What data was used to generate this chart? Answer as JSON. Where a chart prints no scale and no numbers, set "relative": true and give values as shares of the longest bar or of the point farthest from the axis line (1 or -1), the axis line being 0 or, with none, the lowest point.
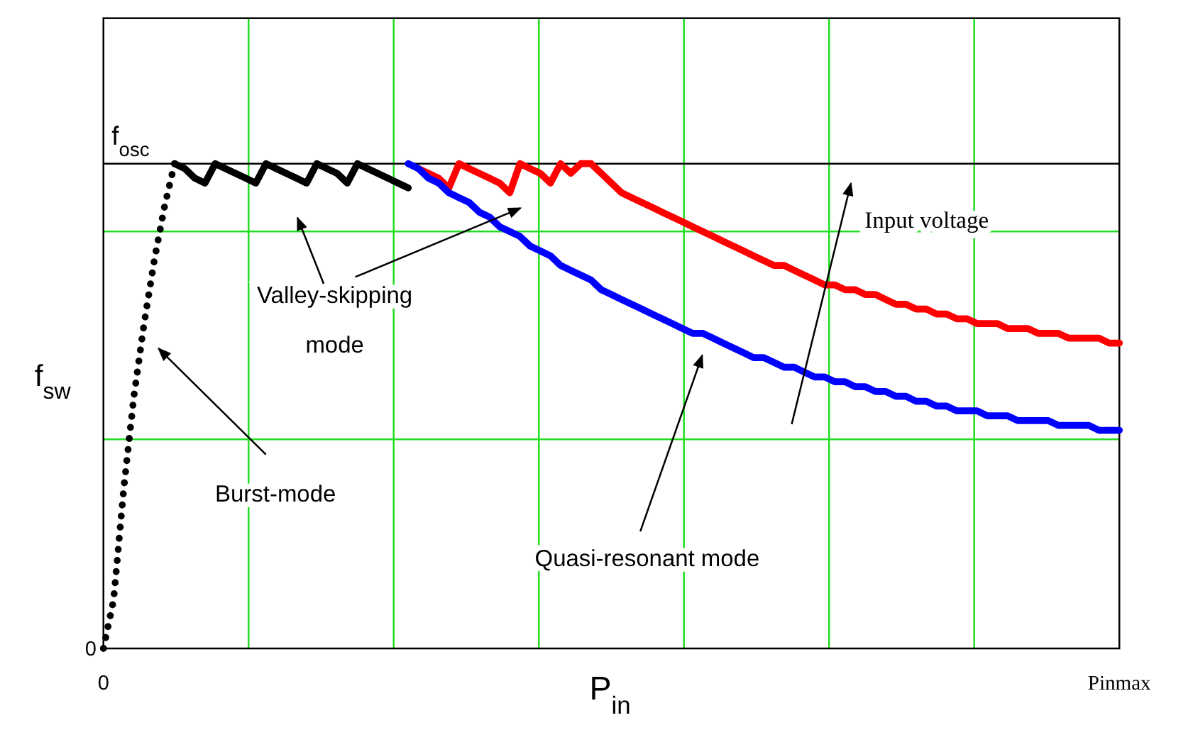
{
  "chart_data": {
    "type": "line",
    "xlabel": "P$_{in}$",
    "ylabel": "f$_{sw}$",
    "relative": true,
    "grid": true,
    "categories": [
      "0",
      null,
      null,
      null,
      null,
      null,
      null,
      null,
      null,
      null,
      null,
      null,
      null,
      null,
      null,
      null,
      null,
      null,
      null,
      null,
      null,
      null,
      null,
      null,
      null,
      null,
      null,
      null,
      null,
      null,
      null,
      null,
      null,
      null,
      null,
      null,
      null,
      null,
      null,
      null,
      null,
      null,
      null,
      null,
      null,
      null,
      null,
      null,
      null,
      null,
      null,
      null,
      null,
      null,
      null,
      null,
      null,
      null,
      null,
      null,
      null,
      null,
      null,
      null,
      null,
      null,
      null,
      null,
      null,
      null,
      null,
      null,
      null,
      null,
      null,
      null,
      null,
      null,
      null,
      null,
      null,
      null,
      null,
      null,
      null,
      null,
      null,
      null,
      null,
      null,
      null,
      null,
      null,
      null,
      null,
      null,
      null,
      null,
      null,
      null,
      "Pinmax"
    ],
    "series": [
      {
        "name": "f$_{osc}$",
        "color": "#000000",
        "line_style": "solid",
        "values": [
          1,
          1,
          1,
          1,
          1,
          1,
          1,
          1,
          1,
          1,
          1,
          1,
          1,
          1,
          1,
          1,
          1,
          1,
          1,
          1,
          1,
          1,
          1,
          1,
          1,
          1,
          1,
          1,
          1,
          1,
          1,
          1,
          1,
          1,
          1,
          1,
          1,
          1,
          1,
          1,
          1,
          1,
          1,
          1,
          1,
          1,
          1,
          1,
          1,
          1,
          1,
          1,
          1,
          1,
          1,
          1,
          1,
          1,
          1,
          1,
          1,
          1,
          1,
          1,
          1,
          1,
          1,
          1,
          1,
          1,
          1,
          1,
          1,
          1,
          1,
          1,
          1,
          1,
          1,
          1,
          1,
          1,
          1,
          1,
          1,
          1,
          1,
          1,
          1,
          1,
          1,
          1,
          1,
          1,
          1,
          1,
          1,
          1,
          1,
          1,
          1
        ]
      },
      {
        "color": "#000000",
        "line_style": "dotted",
        "values": [
          0,
          0.1,
          0.33,
          0.52,
          0.67,
          0.8,
          0.91,
          1,
          null,
          null,
          null,
          null,
          null,
          null,
          null,
          null,
          null,
          null,
          null,
          null,
          null,
          null,
          null,
          null,
          null,
          null,
          null,
          null,
          null,
          null,
          null,
          null,
          null,
          null,
          null,
          null,
          null,
          null,
          null,
          null,
          null,
          null,
          null,
          null,
          null,
          null,
          null,
          null,
          null,
          null,
          null,
          null,
          null,
          null,
          null,
          null,
          null,
          null,
          null,
          null,
          null,
          null,
          null,
          null,
          null,
          null,
          null,
          null,
          null,
          null,
          null,
          null,
          null,
          null,
          null,
          null,
          null,
          null,
          null,
          null,
          null,
          null,
          null,
          null,
          null,
          null,
          null,
          null,
          null,
          null,
          null,
          null,
          null,
          null,
          null,
          null,
          null,
          null,
          null,
          null,
          null
        ]
      },
      {
        "color": "#000000",
        "line_style": "solid",
        "values": [
          null,
          null,
          null,
          null,
          null,
          null,
          null,
          1,
          0.99,
          0.97,
          0.96,
          1,
          0.99,
          0.98,
          0.97,
          0.96,
          1,
          0.99,
          0.98,
          0.97,
          0.96,
          1,
          0.99,
          0.98,
          0.96,
          1,
          0.99,
          0.98,
          0.97,
          0.96,
          0.95,
          null,
          null,
          null,
          null,
          null,
          null,
          null,
          null,
          null,
          null,
          null,
          null,
          null,
          null,
          null,
          null,
          null,
          null,
          null,
          null,
          null,
          null,
          null,
          null,
          null,
          null,
          null,
          null,
          null,
          null,
          null,
          null,
          null,
          null,
          null,
          null,
          null,
          null,
          null,
          null,
          null,
          null,
          null,
          null,
          null,
          null,
          null,
          null,
          null,
          null,
          null,
          null,
          null,
          null,
          null,
          null,
          null,
          null,
          null,
          null,
          null,
          null,
          null,
          null,
          null,
          null,
          null,
          null,
          null,
          null
        ]
      },
      {
        "color": "#ff0000",
        "line_style": "solid",
        "values": [
          null,
          null,
          null,
          null,
          null,
          null,
          null,
          null,
          null,
          null,
          null,
          null,
          null,
          null,
          null,
          null,
          null,
          null,
          null,
          null,
          null,
          null,
          null,
          null,
          null,
          null,
          null,
          null,
          null,
          null,
          null,
          0.99,
          0.98,
          0.97,
          0.95,
          1,
          0.99,
          0.98,
          0.97,
          0.96,
          0.94,
          1,
          0.99,
          0.98,
          0.96,
          1,
          0.98,
          1,
          1,
          0.98,
          0.96,
          0.94,
          0.93,
          0.92,
          0.91,
          0.9,
          0.89,
          0.88,
          0.87,
          0.86,
          0.85,
          0.84,
          0.83,
          0.82,
          0.81,
          0.8,
          0.79,
          0.79,
          0.78,
          0.77,
          0.76,
          0.75,
          0.75,
          0.74,
          0.74,
          0.73,
          0.73,
          0.72,
          0.71,
          0.71,
          0.7,
          0.7,
          0.69,
          0.69,
          0.68,
          0.68,
          0.67,
          0.67,
          0.67,
          0.66,
          0.66,
          0.66,
          0.65,
          0.65,
          0.65,
          0.64,
          0.64,
          0.64,
          0.64,
          0.63,
          0.63
        ]
      },
      {
        "color": "#0000ff",
        "line_style": "solid",
        "values": [
          null,
          null,
          null,
          null,
          null,
          null,
          null,
          null,
          null,
          null,
          null,
          null,
          null,
          null,
          null,
          null,
          null,
          null,
          null,
          null,
          null,
          null,
          null,
          null,
          null,
          null,
          null,
          null,
          null,
          null,
          1,
          0.99,
          0.97,
          0.96,
          0.94,
          0.93,
          0.92,
          0.9,
          0.89,
          0.87,
          0.86,
          0.85,
          0.83,
          0.82,
          0.81,
          0.79,
          0.78,
          0.77,
          0.76,
          0.74,
          0.73,
          0.72,
          0.71,
          0.7,
          0.69,
          0.68,
          0.67,
          0.66,
          0.65,
          0.65,
          0.64,
          0.63,
          0.62,
          0.61,
          0.6,
          0.6,
          0.59,
          0.58,
          0.58,
          0.57,
          0.56,
          0.56,
          0.55,
          0.55,
          0.54,
          0.54,
          0.53,
          0.53,
          0.52,
          0.52,
          0.51,
          0.51,
          0.5,
          0.5,
          0.49,
          0.49,
          0.49,
          0.48,
          0.48,
          0.48,
          0.47,
          0.47,
          0.47,
          0.47,
          0.46,
          0.46,
          0.46,
          0.46,
          0.45,
          0.45,
          0.45
        ]
      }
    ],
    "annotations": [
      "Valley-skipping mode",
      "Burst-mode",
      "Quasi-resonant mode",
      "Input voltage",
      "0"
    ]
  }
}
